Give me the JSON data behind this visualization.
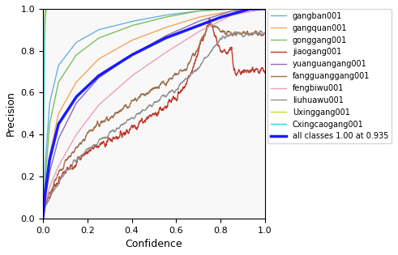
{
  "title": "",
  "xlabel": "Confidence",
  "ylabel": "Precision",
  "xlim": [
    0.0,
    1.0
  ],
  "ylim": [
    0.0,
    1.0
  ],
  "xticks": [
    0.0,
    0.2,
    0.4,
    0.6,
    0.8,
    1.0
  ],
  "yticks": [
    0.0,
    0.2,
    0.4,
    0.6,
    0.8,
    1.0
  ],
  "series": [
    {
      "label": "gangban001",
      "color": "#6ab0e0",
      "lw": 1.0,
      "style": "curve_gangban"
    },
    {
      "label": "gangquan001",
      "color": "#f5a55a",
      "lw": 1.0,
      "style": "curve_gangquan"
    },
    {
      "label": "gonggang001",
      "color": "#7bbf5e",
      "lw": 1.0,
      "style": "curve_gonggang"
    },
    {
      "label": "jiaogang001",
      "color": "#c0392b",
      "lw": 1.0,
      "style": "curve_jiaogang"
    },
    {
      "label": "yuanguangang001",
      "color": "#8e6baf",
      "lw": 1.0,
      "style": "curve_yuanguangang"
    },
    {
      "label": "fangguanggang001",
      "color": "#a0704a",
      "lw": 1.0,
      "style": "curve_fangguanggang"
    },
    {
      "label": "fengbiwu001",
      "color": "#e8a0c0",
      "lw": 1.0,
      "style": "curve_fengbiwu"
    },
    {
      "label": "liuhuawu001",
      "color": "#909090",
      "lw": 1.0,
      "style": "curve_liuhuawu"
    },
    {
      "label": "Uxinggang001",
      "color": "#c8d840",
      "lw": 1.0,
      "style": "curve_uxinggang"
    },
    {
      "label": "Cxingcaogang001",
      "color": "#40c8d8",
      "lw": 1.0,
      "style": "curve_cxingcaogang"
    },
    {
      "label": "all classes 1.00 at 0.935",
      "color": "#1a1aff",
      "lw": 2.5,
      "style": "curve_all"
    }
  ],
  "figsize": [
    4.91,
    3.15
  ],
  "dpi": 100
}
